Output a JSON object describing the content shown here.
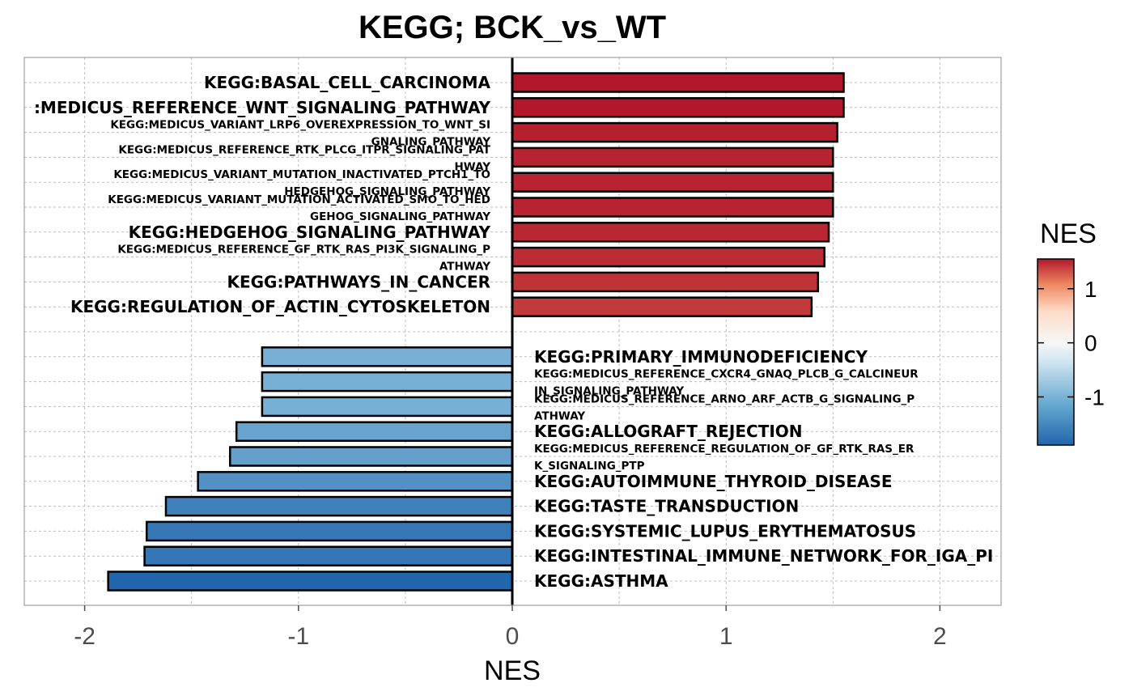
{
  "chart_data": {
    "type": "bar",
    "orientation": "horizontal",
    "title": "KEGG; BCK_vs_WT",
    "xlabel": "NES",
    "ylabel": "",
    "xlim": [
      -2.28,
      2.28
    ],
    "x_ticks": [
      -2,
      -1,
      0,
      1,
      2
    ],
    "x_tick_labels": [
      "-2",
      "-1",
      "0",
      "1",
      "2"
    ],
    "grid": true,
    "categories": [
      [
        "KEGG:BASAL_CELL_CARCINOMA"
      ],
      [
        ":MEDICUS_REFERENCE_WNT_SIGNALING_PATHWAY"
      ],
      [
        "KEGG:MEDICUS_VARIANT_LRP6_OVEREXPRESSION_TO_WNT_SI",
        "GNALING_PATHWAY"
      ],
      [
        "KEGG:MEDICUS_REFERENCE_RTK_PLCG_ITPR_SIGNALING_PAT",
        "HWAY"
      ],
      [
        "KEGG:MEDICUS_VARIANT_MUTATION_INACTIVATED_PTCH1_TO",
        "HEDGEHOG_SIGNALING_PATHWAY"
      ],
      [
        "KEGG:MEDICUS_VARIANT_MUTATION_ACTIVATED_SMO_TO_HED",
        "GEHOG_SIGNALING_PATHWAY"
      ],
      [
        "KEGG:HEDGEHOG_SIGNALING_PATHWAY"
      ],
      [
        "KEGG:MEDICUS_REFERENCE_GF_RTK_RAS_PI3K_SIGNALING_P",
        "ATHWAY"
      ],
      [
        "KEGG:PATHWAYS_IN_CANCER"
      ],
      [
        "KEGG:REGULATION_OF_ACTIN_CYTOSKELETON"
      ],
      [
        ""
      ],
      [
        "KEGG:PRIMARY_IMMUNODEFICIENCY"
      ],
      [
        "KEGG:MEDICUS_REFERENCE_CXCR4_GNAQ_PLCB_G_CALCINEUR",
        "IN_SIGNALING_PATHWAY"
      ],
      [
        "KEGG:MEDICUS_REFERENCE_ARNO_ARF_ACTB_G_SIGNALING_P",
        "ATHWAY"
      ],
      [
        "KEGG:ALLOGRAFT_REJECTION"
      ],
      [
        "KEGG:MEDICUS_REFERENCE_REGULATION_OF_GF_RTK_RAS_ER",
        "K_SIGNALING_PTP"
      ],
      [
        "KEGG:AUTOIMMUNE_THYROID_DISEASE"
      ],
      [
        "KEGG:TASTE_TRANSDUCTION"
      ],
      [
        "KEGG:SYSTEMIC_LUPUS_ERYTHEMATOSUS"
      ],
      [
        "KEGG:INTESTINAL_IMMUNE_NETWORK_FOR_IGA_PI"
      ],
      [
        "KEGG:ASTHMA"
      ]
    ],
    "values": [
      1.55,
      1.55,
      1.52,
      1.5,
      1.5,
      1.5,
      1.48,
      1.46,
      1.43,
      1.4,
      null,
      -1.17,
      -1.17,
      -1.17,
      -1.29,
      -1.32,
      -1.47,
      -1.62,
      -1.71,
      -1.72,
      -1.89
    ],
    "legend": {
      "title": "NES",
      "placement": "right",
      "ticks": [
        1,
        0,
        -1
      ],
      "tick_labels": [
        "1",
        "0",
        "-1"
      ],
      "range": [
        -1.89,
        1.55
      ],
      "colors": {
        "low": "#2166ac",
        "mid": "#f7f7f7",
        "high": "#b2182b"
      }
    }
  }
}
